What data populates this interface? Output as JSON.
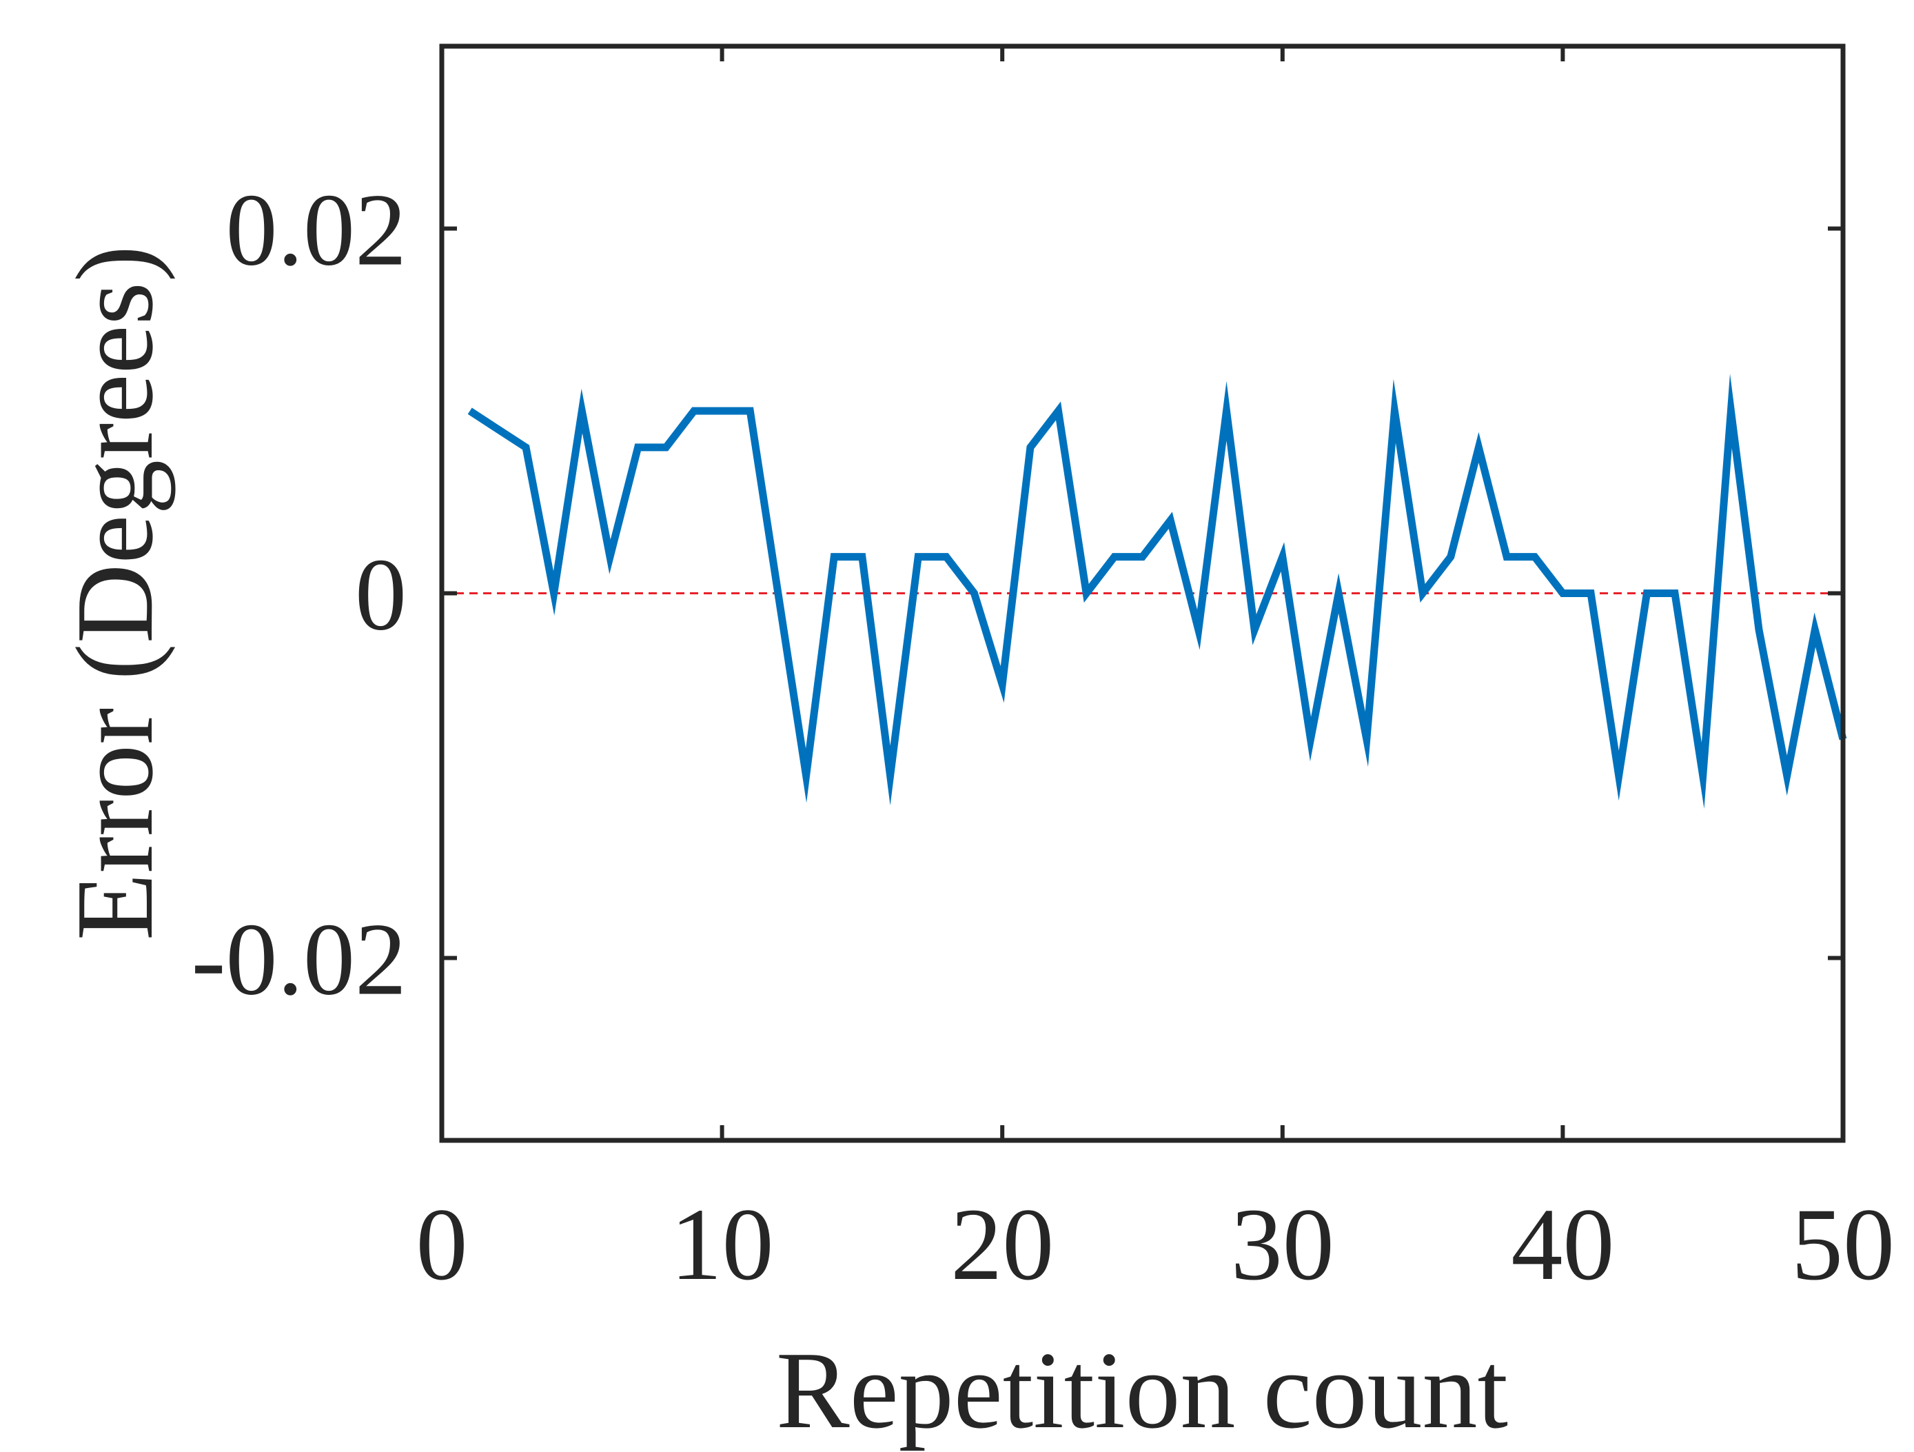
{
  "chart_data": {
    "type": "line",
    "xlabel": "Repetition count",
    "ylabel": "Error (Degrees)",
    "xlim": [
      0,
      50
    ],
    "ylim": [
      -0.03,
      0.03
    ],
    "xticks": [
      0,
      10,
      20,
      30,
      40,
      50
    ],
    "xtick_labels": [
      "0",
      "10",
      "20",
      "30",
      "40",
      "50"
    ],
    "yticks": [
      -0.02,
      0,
      0.02
    ],
    "ytick_labels": [
      "-0.02",
      "0",
      "0.02"
    ],
    "grid": false,
    "reference_line": {
      "y": 0,
      "style": "dashed",
      "color": "#e8202a"
    },
    "series": [
      {
        "color": "#0072bd",
        "x": [
          1,
          2,
          3,
          4,
          5,
          6,
          7,
          8,
          9,
          10,
          11,
          12,
          13,
          14,
          15,
          16,
          17,
          18,
          19,
          20,
          21,
          22,
          23,
          24,
          25,
          26,
          27,
          28,
          29,
          30,
          31,
          32,
          33,
          34,
          35,
          36,
          37,
          38,
          39,
          40,
          41,
          42,
          43,
          44,
          45,
          46,
          47,
          48,
          49,
          50
        ],
        "y": [
          0.01,
          0.009,
          0.008,
          0,
          0.01,
          0.002,
          0.008,
          0.008,
          0.01,
          0.01,
          0.01,
          0,
          -0.01,
          0.002,
          0.002,
          -0.01,
          0.002,
          0.002,
          0,
          -0.005,
          0.008,
          0.01,
          0,
          0.002,
          0.002,
          0.004,
          -0.002,
          0.01,
          -0.002,
          0.002,
          -0.008,
          0,
          -0.008,
          0.01,
          0,
          0.002,
          0.008,
          0.002,
          0.002,
          0,
          0,
          -0.01,
          0,
          0,
          -0.01,
          0.01,
          -0.002,
          -0.01,
          -0.002,
          -0.008
        ]
      }
    ]
  }
}
